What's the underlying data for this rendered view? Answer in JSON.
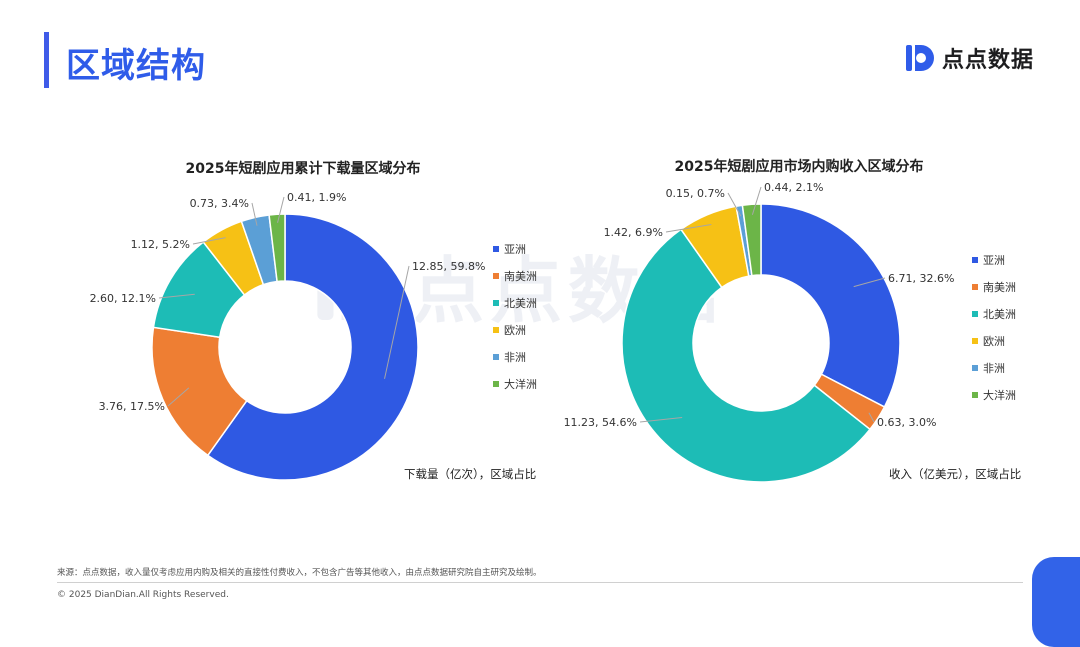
{
  "header": {
    "title": "区域结构",
    "logo_text": "点点数据"
  },
  "watermark": {
    "text": "点点数据"
  },
  "footer": {
    "source": "来源：点点数据，收入量仅考虑应用内购及相关的直接性付费收入，不包含广告等其他收入，由点点数据研究院自主研究及绘制。",
    "copyright": "© 2025 DianDian.All Rights Reserved."
  },
  "colors": {
    "亚洲": "#2f59e3",
    "南美洲": "#ee7e33",
    "北美洲": "#1dbcb6",
    "欧洲": "#f6c115",
    "非洲": "#5b9fd6",
    "大洋洲": "#6cb548"
  },
  "chart_data": [
    {
      "type": "pie",
      "variant": "donut",
      "title": "2025年短剧应用累计下载量区域分布",
      "unit_note": "下载量（亿次），区域占比",
      "categories": [
        "亚洲",
        "南美洲",
        "北美洲",
        "欧洲",
        "非洲",
        "大洋洲"
      ],
      "values": [
        12.85,
        3.76,
        2.6,
        1.12,
        0.73,
        0.41
      ],
      "percents": [
        59.8,
        17.5,
        12.1,
        5.2,
        3.4,
        1.9
      ],
      "labels": [
        "12.85, 59.8%",
        "3.76, 17.5%",
        "2.60, 12.1%",
        "1.12, 5.2%",
        "0.73, 3.4%",
        "0.41, 1.9%"
      ],
      "legend_position": "right"
    },
    {
      "type": "pie",
      "variant": "donut",
      "title": "2025年短剧应用市场内购收入区域分布",
      "unit_note": "收入（亿美元），区域占比",
      "categories": [
        "亚洲",
        "南美洲",
        "北美洲",
        "欧洲",
        "非洲",
        "大洋洲"
      ],
      "values": [
        6.71,
        0.63,
        11.23,
        1.42,
        0.15,
        0.44
      ],
      "percents": [
        32.6,
        3.0,
        54.6,
        6.9,
        0.7,
        2.1
      ],
      "labels": [
        "6.71, 32.6%",
        "0.63, 3.0%",
        "11.23, 54.6%",
        "1.42, 6.9%",
        "0.15, 0.7%",
        "0.44, 2.1%"
      ],
      "legend_position": "right"
    }
  ]
}
